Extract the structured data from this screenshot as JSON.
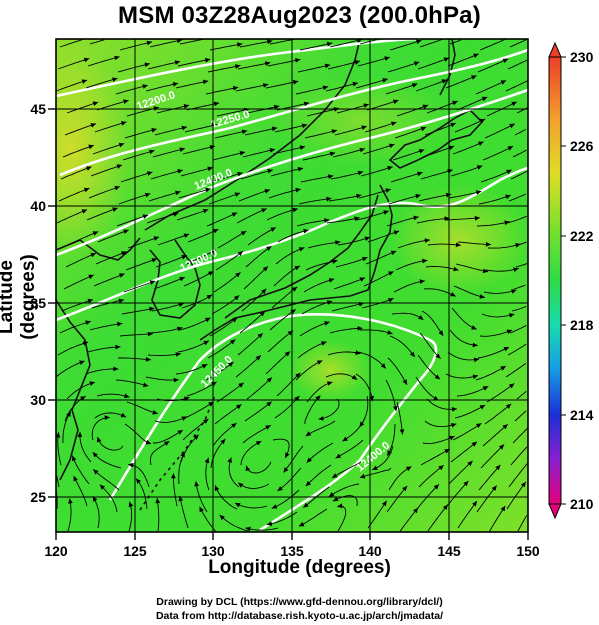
{
  "title": "MSM 03Z28Aug2023 (200.0hPa)",
  "xlabel": "Longitude (degrees)",
  "ylabel": "Latitude  (degrees)",
  "footer": {
    "line1": "Drawing by DCL (https://www.gfd-dennou.org/library/dcl/)",
    "line2": "Data from http://database.rish.kyoto-u.ac.jp/arch/jmadata/"
  },
  "map": {
    "lon_range": [
      120,
      150
    ],
    "lat_range": [
      22.4,
      47.6
    ],
    "lon_ticks": [
      "120",
      "125",
      "130",
      "135",
      "140",
      "145",
      "150"
    ],
    "lat_ticks": [
      "25",
      "30",
      "35",
      "40",
      "45"
    ],
    "contour_labels": [
      "12200.0",
      "12250.0",
      "12400.0",
      "12500.0",
      "12450.0",
      "12400.0"
    ],
    "colors": {
      "field_base": "#3fdc32",
      "field_light": "#9ee12a",
      "field_warm": "#d8dc2a",
      "contour": "#ffffff",
      "vector": "#000000"
    }
  },
  "colorbar": {
    "labels": [
      "230",
      "226",
      "222",
      "218",
      "214",
      "210"
    ],
    "min": 210,
    "max": 230,
    "colors": [
      "#e6007a",
      "#8a1fd1",
      "#1c2fd8",
      "#159be6",
      "#18dcb0",
      "#2ddc46",
      "#9ee12a",
      "#e0dd25",
      "#f3a02c",
      "#ee3f28"
    ]
  }
}
